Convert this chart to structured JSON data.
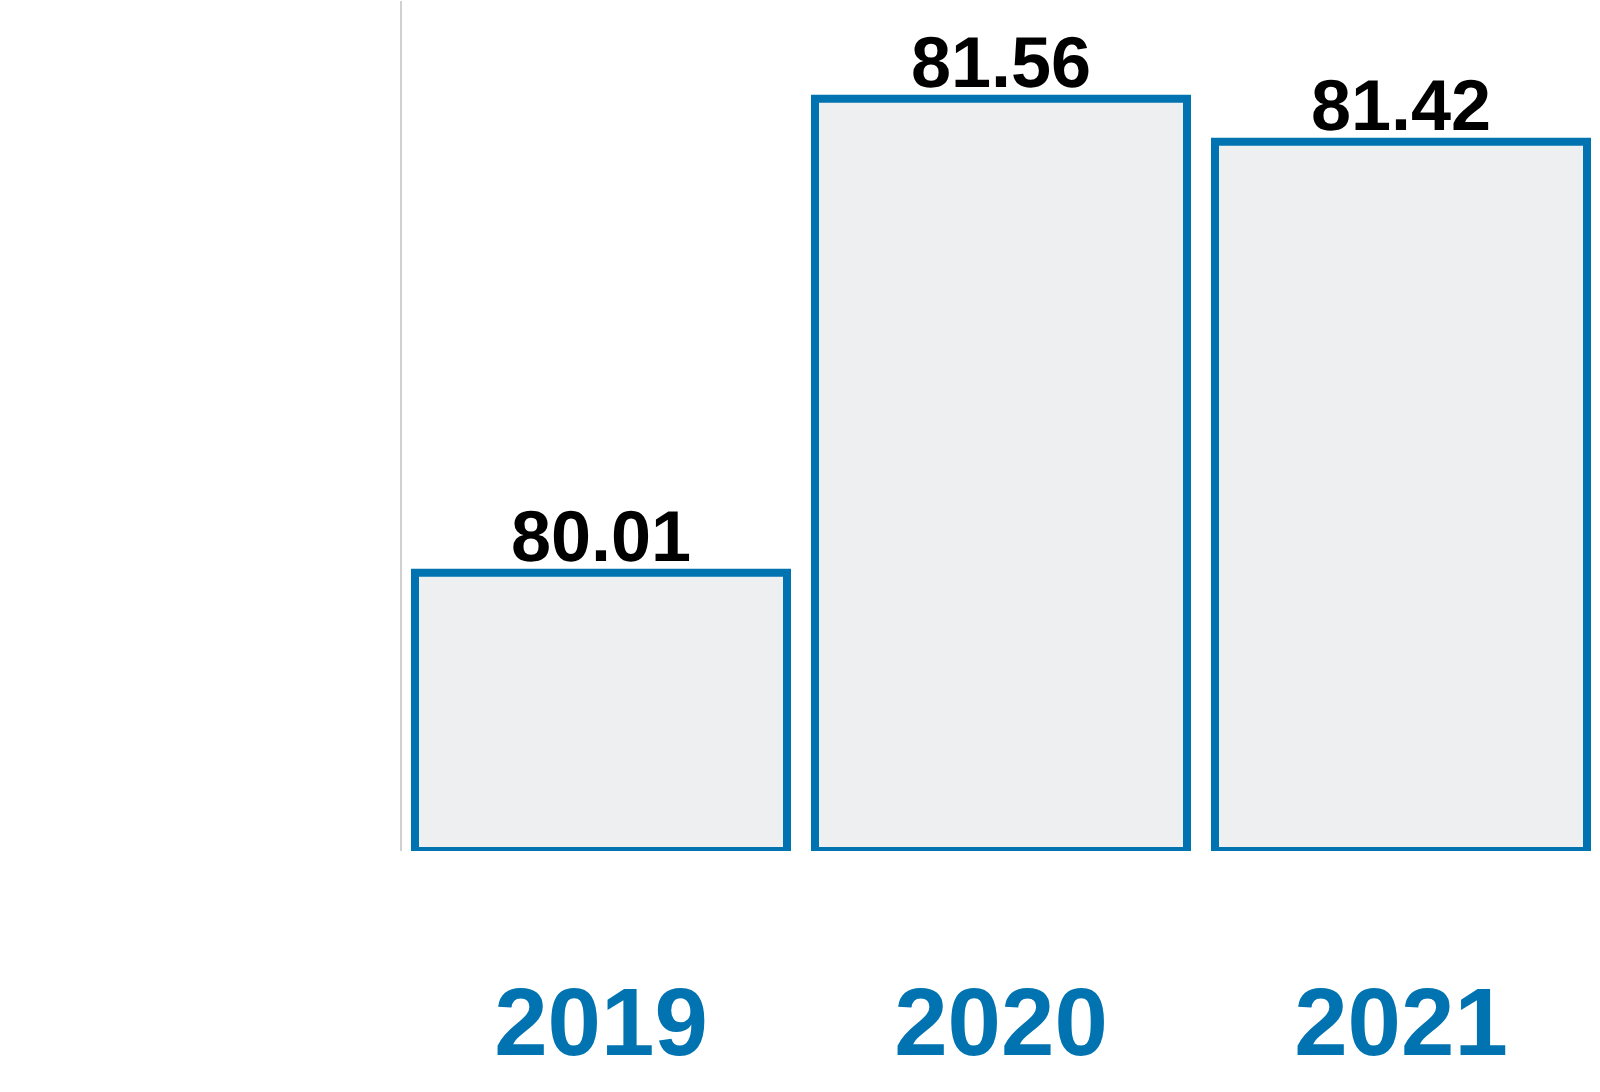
{
  "chart_data": {
    "type": "bar",
    "categories": [
      "2019",
      "2020",
      "2021"
    ],
    "values": [
      80.01,
      81.56,
      81.42
    ],
    "color": "#eeeff1",
    "ylim": [
      79.1,
      81.88
    ],
    "data_labels": true,
    "tick_labels": "x",
    "grid": false,
    "legend": false
  }
}
